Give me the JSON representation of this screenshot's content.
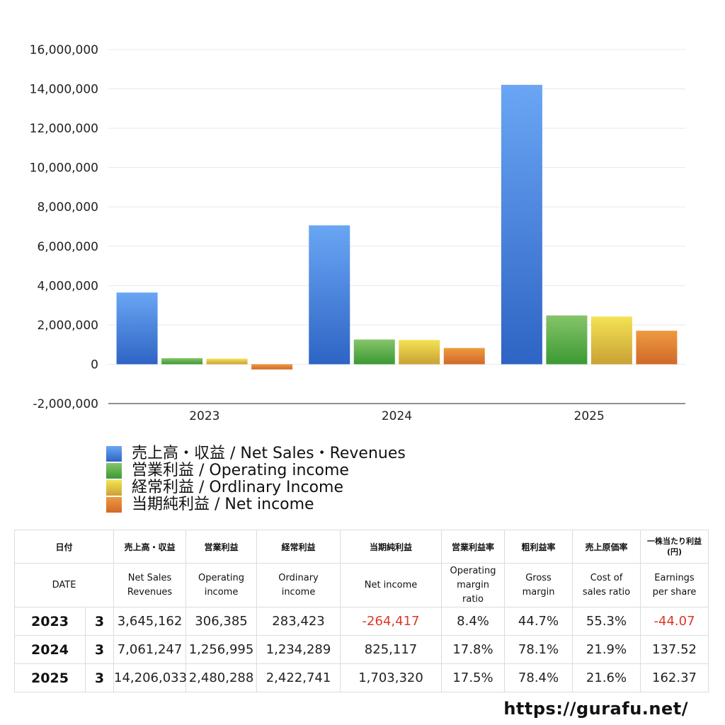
{
  "chart_data": {
    "type": "bar",
    "categories": [
      "2023",
      "2024",
      "2025"
    ],
    "series": [
      {
        "name": "売上高・収益 / Net Sales・Revenues",
        "values": [
          3645162,
          7061247,
          14206033
        ],
        "color_top": "#6aa6f4",
        "color_bottom": "#2e64c4"
      },
      {
        "name": "営業利益 / Operating income",
        "values": [
          306385,
          1256995,
          2480288
        ],
        "color_top": "#86c46a",
        "color_bottom": "#3b9a32"
      },
      {
        "name": "経常利益 / Ordlinary Income",
        "values": [
          283423,
          1234289,
          2422741
        ],
        "color_top": "#f4e253",
        "color_bottom": "#c9a235"
      },
      {
        "name": "当期純利益 / Net income",
        "values": [
          -264417,
          825117,
          1703320
        ],
        "color_top": "#ee9a3f",
        "color_bottom": "#d0692a"
      }
    ],
    "ylim": [
      -2000000,
      16000000
    ],
    "yticks": [
      "-2,000,000",
      "0",
      "2,000,000",
      "4,000,000",
      "6,000,000",
      "8,000,000",
      "10,000,000",
      "12,000,000",
      "14,000,000",
      "16,000,000"
    ],
    "ytick_values": [
      -2000000,
      0,
      2000000,
      4000000,
      6000000,
      8000000,
      10000000,
      12000000,
      14000000,
      16000000
    ],
    "grid": true,
    "legend_placement": "bottom-left"
  },
  "table": {
    "header_jp": [
      "日付",
      "売上高・収益",
      "営業利益",
      "経常利益",
      "当期純利益",
      "営業利益率",
      "粗利益率",
      "売上原価率",
      "一株当たり利益",
      "(円)"
    ],
    "header_en": [
      "DATE",
      "Net Sales",
      "Revenues",
      "Operating",
      "income",
      "Ordinary",
      "income",
      "Net income",
      "Operating",
      "margin",
      "ratio",
      "Gross",
      "margin",
      "Cost of",
      "sales ratio",
      "Earnings",
      "per share"
    ],
    "rows": [
      {
        "year": "2023",
        "month": "3",
        "sales": "3,645,162",
        "op": "306,385",
        "ord": "283,423",
        "net": "-264,417",
        "opm": "8.4%",
        "gm": "44.7%",
        "cos": "55.3%",
        "eps": "-44.07",
        "net_negative": true,
        "eps_negative": true
      },
      {
        "year": "2024",
        "month": "3",
        "sales": "7,061,247",
        "op": "1,256,995",
        "ord": "1,234,289",
        "net": "825,117",
        "opm": "17.8%",
        "gm": "78.1%",
        "cos": "21.9%",
        "eps": "137.52",
        "net_negative": false,
        "eps_negative": false
      },
      {
        "year": "2025",
        "month": "3",
        "sales": "14,206,033",
        "op": "2,480,288",
        "ord": "2,422,741",
        "net": "1,703,320",
        "opm": "17.5%",
        "gm": "78.4%",
        "cos": "21.6%",
        "eps": "162.37",
        "net_negative": false,
        "eps_negative": false
      }
    ]
  },
  "footer": {
    "url": "https://gurafu.net/"
  }
}
